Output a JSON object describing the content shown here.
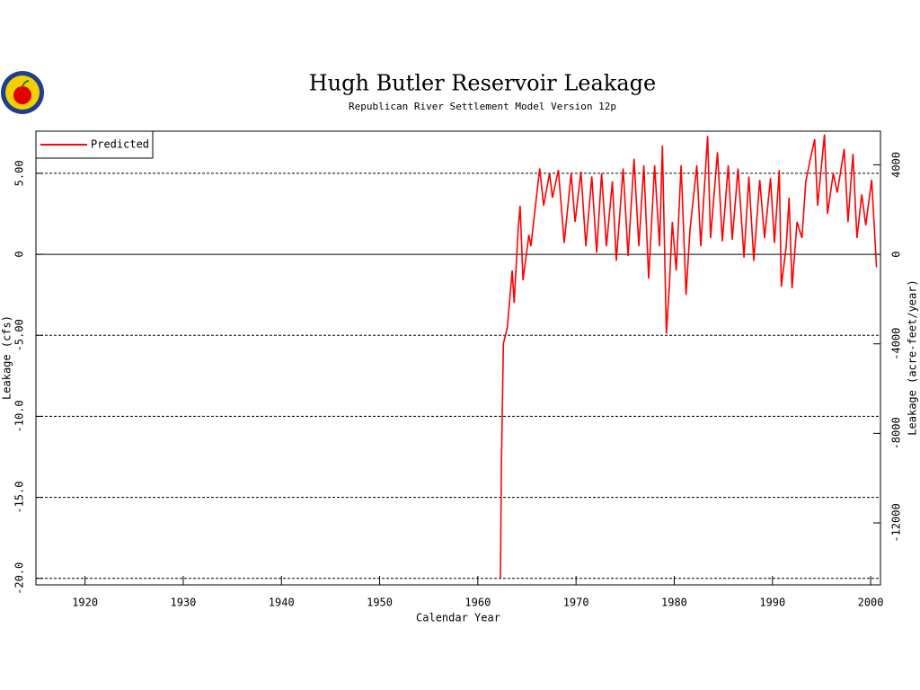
{
  "chart_data": {
    "type": "line",
    "title": "Hugh Butler Reservoir Leakage",
    "subtitle": "Republican River Settlement Model Version 12p",
    "xlabel": "Calendar Year",
    "ylabel": "Leakage (cfs)",
    "y2label": "Leakage (acre-feet/year)",
    "xlim": [
      1915,
      2001
    ],
    "xticks": [
      1920,
      1930,
      1940,
      1950,
      1960,
      1970,
      1980,
      1990,
      2000
    ],
    "ylim": [
      -20.4,
      7.6
    ],
    "yticks": [
      {
        "value": -20,
        "label": "-20.0"
      },
      {
        "value": -15,
        "label": "-15.0"
      },
      {
        "value": -10,
        "label": "-10.0"
      },
      {
        "value": -5,
        "label": "-5.00"
      },
      0,
      {
        "value": 5,
        "label": "5.00"
      }
    ],
    "y2lim": [
      -14770,
      5503
    ],
    "y2ticks": [
      -12000,
      -8000,
      -4000,
      0,
      4000
    ],
    "grid": true,
    "legend": "upper left",
    "x": [
      1962.3,
      1962.4,
      1962.6,
      1963.0,
      1963.5,
      1963.7,
      1964.1,
      1964.3,
      1964.6,
      1965.2,
      1965.4,
      1966.3,
      1966.7,
      1967.3,
      1967.6,
      1968.2,
      1968.8,
      1969.5,
      1969.9,
      1970.5,
      1971.0,
      1971.6,
      1972.1,
      1972.6,
      1973.1,
      1973.7,
      1974.1,
      1974.8,
      1975.3,
      1975.9,
      1976.4,
      1976.9,
      1977.4,
      1978.0,
      1978.5,
      1978.8,
      1979.2,
      1979.5,
      1979.8,
      1980.2,
      1980.7,
      1981.2,
      1981.6,
      1982.3,
      1982.7,
      1983.4,
      1983.7,
      1984.4,
      1984.9,
      1985.5,
      1985.9,
      1986.5,
      1987.1,
      1987.6,
      1988.1,
      1988.7,
      1989.2,
      1989.8,
      1990.2,
      1990.7,
      1990.9,
      1991.4,
      1991.7,
      1992.0,
      1992.5,
      1993.0,
      1993.4,
      1993.9,
      1994.3,
      1994.6,
      1995.3,
      1995.6,
      1996.2,
      1996.6,
      1997.3,
      1997.7,
      1998.2,
      1998.6,
      1999.1,
      1999.5,
      2000.1,
      2000.6
    ],
    "series": [
      {
        "name": "Predicted",
        "color": "#ff0000",
        "values": [
          -20,
          -13,
          -5.5,
          -4.5,
          -1,
          -3,
          1.5,
          3,
          -1.6,
          1.2,
          0.5,
          5.3,
          3.0,
          5,
          3.5,
          5.2,
          0.7,
          5,
          2,
          5.1,
          0.5,
          4.8,
          0.1,
          5,
          0.5,
          4.5,
          -0.4,
          5.3,
          -0.1,
          5.9,
          0.5,
          5.5,
          -1.5,
          5.5,
          0.5,
          6.7,
          -4.9,
          -2,
          2,
          -1,
          5.5,
          -2.5,
          1.5,
          5.5,
          0.5,
          7.3,
          1,
          6.3,
          0.8,
          5.5,
          0.9,
          5.3,
          -0.2,
          4.8,
          -0.4,
          4.6,
          1,
          4.7,
          0.7,
          5.2,
          -2,
          0.5,
          3.5,
          -2.1,
          2,
          1,
          4.5,
          6,
          7.1,
          3,
          7.4,
          2.5,
          5,
          3.8,
          6.5,
          2,
          6.2,
          1.0,
          3.7,
          1.8,
          4.6,
          -0.8
        ]
      }
    ]
  }
}
